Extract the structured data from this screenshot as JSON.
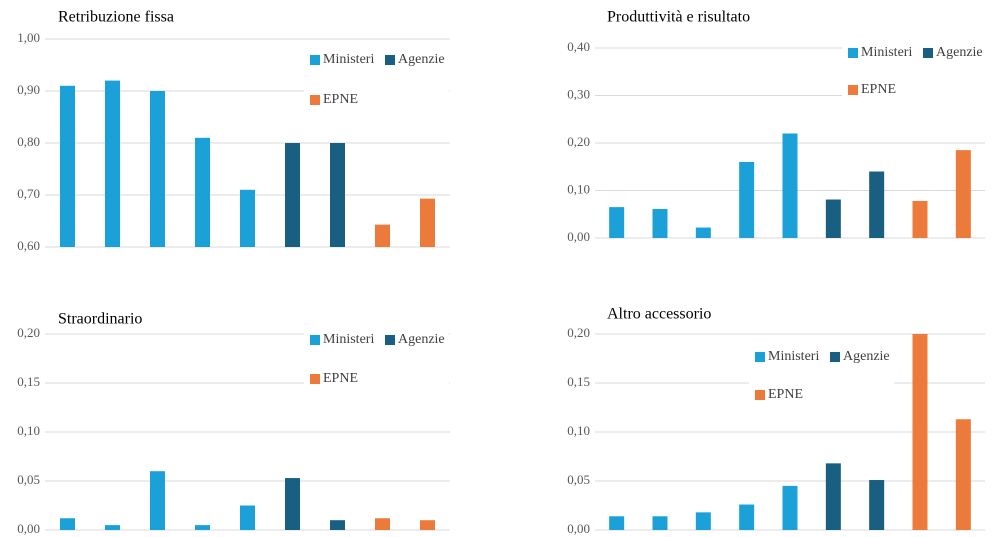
{
  "chart_data": [
    {
      "type": "bar",
      "title": "Retribuzione  fissa",
      "categories": [
        null,
        null,
        null,
        null,
        null,
        null,
        null,
        null,
        null
      ],
      "series": [
        {
          "name": "Ministeri",
          "color": "#1ba1d8",
          "values": [
            0.91,
            0.92,
            0.9,
            0.81,
            0.71,
            null,
            null,
            null,
            null
          ]
        },
        {
          "name": "Agenzie",
          "color": "#195f82",
          "values": [
            null,
            null,
            null,
            null,
            null,
            0.8,
            0.8,
            null,
            null
          ]
        },
        {
          "name": "EPNE",
          "color": "#ec7a3a",
          "values": [
            null,
            null,
            null,
            null,
            null,
            null,
            null,
            0.643,
            0.693
          ]
        }
      ],
      "ylim": [
        0.6,
        1.0
      ],
      "yticks": [
        {
          "value": 0.6,
          "label": "0,60"
        },
        {
          "value": 0.7,
          "label": "0,70"
        },
        {
          "value": 0.8,
          "label": "0,80"
        },
        {
          "value": 0.9,
          "label": "0,90"
        },
        {
          "value": 1.0,
          "label": "1,00"
        }
      ],
      "grid": true
    },
    {
      "type": "bar",
      "title": "Produttività e risultato",
      "categories": [
        null,
        null,
        null,
        null,
        null,
        null,
        null,
        null,
        null
      ],
      "series": [
        {
          "name": "Ministeri",
          "color": "#1ba1d8",
          "values": [
            0.065,
            0.061,
            0.022,
            0.16,
            0.22,
            null,
            null,
            null,
            null
          ]
        },
        {
          "name": "Agenzie",
          "color": "#195f82",
          "values": [
            null,
            null,
            null,
            null,
            null,
            0.081,
            0.14,
            null,
            null
          ]
        },
        {
          "name": "EPNE",
          "color": "#ec7a3a",
          "values": [
            null,
            null,
            null,
            null,
            null,
            null,
            null,
            0.078,
            0.185
          ]
        }
      ],
      "ylim": [
        0,
        0.4
      ],
      "yticks": [
        {
          "value": 0,
          "label": "0,00"
        },
        {
          "value": 0.1,
          "label": "0,10"
        },
        {
          "value": 0.2,
          "label": "0,20"
        },
        {
          "value": 0.3,
          "label": "0,30"
        },
        {
          "value": 0.4,
          "label": "0,40"
        }
      ],
      "grid": true
    },
    {
      "type": "bar",
      "title": "Straordinario",
      "categories": [
        null,
        null,
        null,
        null,
        null,
        null,
        null,
        null,
        null
      ],
      "series": [
        {
          "name": "Ministeri",
          "color": "#1ba1d8",
          "values": [
            0.012,
            0.005,
            0.06,
            0.005,
            0.025,
            null,
            null,
            null,
            null
          ]
        },
        {
          "name": "Agenzie",
          "color": "#195f82",
          "values": [
            null,
            null,
            null,
            null,
            null,
            0.053,
            0.01,
            null,
            null
          ]
        },
        {
          "name": "EPNE",
          "color": "#ec7a3a",
          "values": [
            null,
            null,
            null,
            null,
            null,
            null,
            null,
            0.012,
            0.01
          ]
        }
      ],
      "ylim": [
        0,
        0.2
      ],
      "yticks": [
        {
          "value": 0,
          "label": "0,00"
        },
        {
          "value": 0.05,
          "label": "0,05"
        },
        {
          "value": 0.1,
          "label": "0,10"
        },
        {
          "value": 0.15,
          "label": "0,15"
        },
        {
          "value": 0.2,
          "label": "0,20"
        }
      ],
      "grid": true
    },
    {
      "type": "bar",
      "title": "Altro accessorio",
      "categories": [
        null,
        null,
        null,
        null,
        null,
        null,
        null,
        null,
        null
      ],
      "series": [
        {
          "name": "Ministeri",
          "color": "#1ba1d8",
          "values": [
            0.014,
            0.014,
            0.018,
            0.026,
            0.045,
            null,
            null,
            null,
            null
          ]
        },
        {
          "name": "Agenzie",
          "color": "#195f82",
          "values": [
            null,
            null,
            null,
            null,
            null,
            0.068,
            0.051,
            null,
            null
          ]
        },
        {
          "name": "EPNE",
          "color": "#ec7a3a",
          "values": [
            null,
            null,
            null,
            null,
            null,
            null,
            null,
            0.2,
            0.113
          ]
        }
      ],
      "ylim": [
        0,
        0.2
      ],
      "yticks": [
        {
          "value": 0,
          "label": "0,00"
        },
        {
          "value": 0.05,
          "label": "0,05"
        },
        {
          "value": 0.1,
          "label": "0,10"
        },
        {
          "value": 0.15,
          "label": "0,15"
        },
        {
          "value": 0.2,
          "label": "0,20"
        }
      ],
      "grid": true
    }
  ]
}
